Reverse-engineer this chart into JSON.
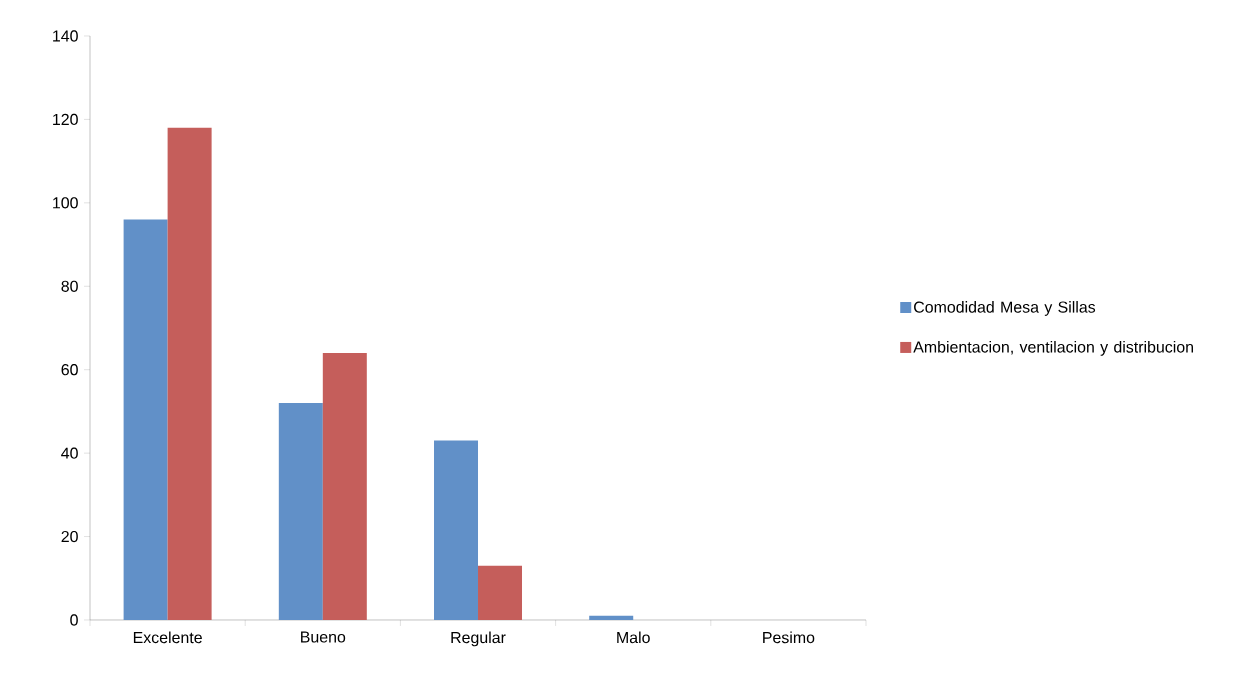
{
  "chart_data": {
    "type": "bar",
    "categories": [
      "Excelente",
      "Bueno",
      "Regular",
      "Malo",
      "Pesimo"
    ],
    "series": [
      {
        "name": "Comodidad Mesa y Sillas",
        "color": "#6190c8",
        "values": [
          96,
          52,
          43,
          1,
          0
        ]
      },
      {
        "name": "Ambientacion, ventilacion y distribucion",
        "color": "#c55e5b",
        "values": [
          118,
          64,
          13,
          0,
          0
        ]
      }
    ],
    "ylim": [
      0,
      140
    ],
    "yticks": [
      0,
      20,
      40,
      60,
      80,
      100,
      120,
      140
    ],
    "legend": "right"
  }
}
